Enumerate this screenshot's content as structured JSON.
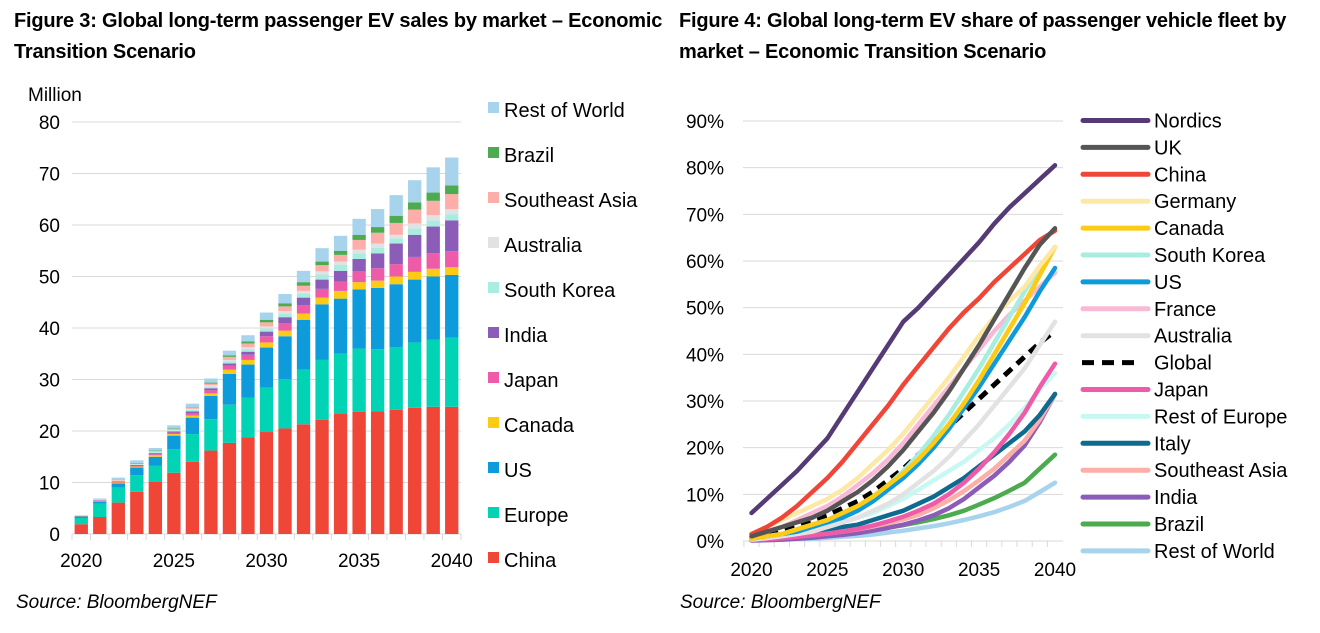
{
  "figures": {
    "fig3": {
      "title": "Figure 3: Global long-term passenger EV sales by market – Economic Transition Scenario",
      "source": "Source: BloombergNEF"
    },
    "fig4": {
      "title": "Figure 4: Global long-term EV share of passenger vehicle fleet by market – Economic Transition Scenario",
      "source": "Source: BloombergNEF"
    }
  },
  "chart_data": [
    {
      "type": "bar",
      "stacked": true,
      "title": "Figure 3: Global long-term passenger EV sales by market – Economic Transition Scenario",
      "ylabel": "Million",
      "xlabel": "",
      "ylim": [
        0,
        80
      ],
      "yticks": [
        0,
        10,
        20,
        30,
        40,
        50,
        60,
        70,
        80
      ],
      "xtick_labels": [
        "2020",
        "2025",
        "2030",
        "2035",
        "2040"
      ],
      "grid": true,
      "legend_position": "right",
      "categories": [
        "2020",
        "2021",
        "2022",
        "2023",
        "2024",
        "2025",
        "2026",
        "2027",
        "2028",
        "2029",
        "2030",
        "2031",
        "2032",
        "2033",
        "2034",
        "2035",
        "2036",
        "2037",
        "2038",
        "2039",
        "2040"
      ],
      "series": [
        {
          "name": "China",
          "color": "#ef4638",
          "values": [
            1.9,
            3.3,
            6.1,
            8.2,
            10.1,
            11.9,
            14.0,
            16.2,
            17.7,
            18.8,
            19.8,
            20.5,
            21.3,
            22.2,
            23.3,
            23.7,
            23.8,
            24.1,
            24.5,
            24.7,
            24.7
          ]
        },
        {
          "name": "Europe",
          "color": "#00d4b4",
          "values": [
            1.2,
            2.6,
            2.9,
            3.2,
            3.2,
            4.6,
            5.4,
            6.1,
            7.4,
            7.7,
            8.6,
            9.6,
            10.6,
            11.6,
            11.7,
            12.3,
            12.1,
            12.2,
            12.7,
            13.0,
            13.4
          ]
        },
        {
          "name": "US",
          "color": "#0e9bdb",
          "values": [
            0.3,
            0.4,
            0.8,
            1.5,
            1.7,
            2.6,
            3.2,
            4.5,
            6.0,
            6.4,
            7.8,
            8.3,
            9.7,
            10.8,
            10.7,
            11.5,
            11.9,
            12.2,
            12.2,
            12.3,
            12.2
          ]
        },
        {
          "name": "Canada",
          "color": "#fdcb13",
          "values": [
            0.05,
            0.1,
            0.2,
            0.2,
            0.3,
            0.3,
            0.4,
            0.5,
            0.8,
            0.9,
            1.0,
            1.1,
            1.2,
            1.3,
            1.5,
            1.4,
            1.4,
            1.5,
            1.5,
            1.5,
            1.5
          ]
        },
        {
          "name": "Japan",
          "color": "#ee5ba8",
          "values": [
            0.05,
            0.1,
            0.1,
            0.2,
            0.2,
            0.3,
            0.5,
            0.6,
            0.8,
            1.0,
            1.2,
            1.4,
            1.6,
            1.7,
            1.8,
            2.1,
            2.4,
            2.4,
            2.9,
            3.0,
            3.1
          ]
        },
        {
          "name": "India",
          "color": "#8b5cb8",
          "values": [
            0.0,
            0.05,
            0.1,
            0.1,
            0.2,
            0.2,
            0.3,
            0.4,
            0.4,
            0.6,
            0.9,
            1.2,
            1.5,
            1.8,
            2.1,
            2.4,
            2.9,
            4.0,
            4.3,
            5.2,
            6.0
          ]
        },
        {
          "name": "South Korea",
          "color": "#a8ede0",
          "values": [
            0.05,
            0.05,
            0.1,
            0.1,
            0.2,
            0.2,
            0.3,
            0.3,
            0.4,
            0.5,
            0.6,
            0.7,
            0.8,
            1.0,
            1.2,
            1.1,
            1.1,
            1.0,
            1.2,
            1.2,
            1.2
          ]
        },
        {
          "name": "Australia",
          "color": "#e2e2e2",
          "values": [
            0.0,
            0.05,
            0.1,
            0.1,
            0.1,
            0.1,
            0.2,
            0.3,
            0.3,
            0.4,
            0.4,
            0.5,
            0.5,
            0.6,
            0.6,
            0.7,
            0.8,
            0.7,
            1.0,
            1.0,
            1.0
          ]
        },
        {
          "name": "Southeast Asia",
          "color": "#fdaea8",
          "values": [
            0.0,
            0.05,
            0.1,
            0.1,
            0.1,
            0.2,
            0.2,
            0.3,
            0.6,
            0.7,
            0.8,
            0.9,
            1.0,
            1.2,
            1.3,
            1.9,
            2.1,
            2.3,
            2.7,
            2.8,
            2.9
          ]
        },
        {
          "name": "Brazil",
          "color": "#4caa4f",
          "values": [
            0.0,
            0.0,
            0.05,
            0.1,
            0.1,
            0.1,
            0.1,
            0.2,
            0.3,
            0.4,
            0.5,
            0.6,
            0.7,
            0.7,
            0.8,
            1.0,
            1.1,
            1.4,
            1.4,
            1.6,
            1.7
          ]
        },
        {
          "name": "Rest of World",
          "color": "#a7d4ec",
          "values": [
            0.1,
            0.2,
            0.4,
            0.5,
            0.5,
            0.6,
            0.7,
            0.8,
            0.9,
            1.2,
            1.4,
            1.8,
            2.2,
            2.6,
            2.9,
            3.1,
            3.5,
            4.0,
            4.3,
            4.9,
            5.4
          ]
        }
      ]
    },
    {
      "type": "line",
      "title": "Figure 4: Global long-term EV share of passenger vehicle fleet by market – Economic Transition Scenario",
      "ylabel": "",
      "xlabel": "",
      "ylim": [
        0,
        90
      ],
      "yticks": [
        0,
        10,
        20,
        30,
        40,
        50,
        60,
        70,
        80,
        90
      ],
      "ytick_format": "percent",
      "xlim": [
        2020,
        2040
      ],
      "xtick_labels": [
        "2020",
        "2025",
        "2030",
        "2035",
        "2040"
      ],
      "grid": true,
      "legend_position": "right",
      "x": [
        2020,
        2021,
        2022,
        2023,
        2024,
        2025,
        2026,
        2027,
        2028,
        2029,
        2030,
        2031,
        2032,
        2033,
        2034,
        2035,
        2036,
        2037,
        2038,
        2039,
        2040
      ],
      "series": [
        {
          "name": "Nordics",
          "color": "#553a76",
          "dashed": false,
          "values": [
            6,
            9,
            12,
            15,
            18.5,
            22,
            27,
            32,
            37,
            42,
            47,
            50,
            53.5,
            57,
            60.5,
            64,
            68,
            71.5,
            74.5,
            77.5,
            80.5
          ]
        },
        {
          "name": "UK",
          "color": "#555555",
          "dashed": false,
          "values": [
            1,
            2,
            3,
            4,
            5,
            6.5,
            8.5,
            10.5,
            13,
            16,
            19.5,
            23.5,
            27.5,
            32,
            37,
            42,
            47.5,
            53,
            58.5,
            63.5,
            67
          ]
        },
        {
          "name": "China",
          "color": "#ef4638",
          "dashed": false,
          "values": [
            1.5,
            3,
            5,
            7.5,
            10.5,
            13.5,
            17,
            21,
            25,
            29,
            33.5,
            37.5,
            41.5,
            45.5,
            49,
            52,
            55.5,
            58.5,
            61.5,
            64.5,
            66.5
          ]
        },
        {
          "name": "Germany",
          "color": "#fde8a6",
          "dashed": false,
          "values": [
            1.5,
            3,
            4.5,
            6,
            7.5,
            9,
            11,
            13.5,
            16.5,
            19.5,
            23,
            27,
            31,
            35,
            39.5,
            44,
            48,
            51.5,
            54.5,
            59,
            63
          ]
        },
        {
          "name": "Canada",
          "color": "#fdcb13",
          "dashed": false,
          "values": [
            0.5,
            1,
            1.5,
            2.5,
            3.5,
            4.5,
            6,
            7.5,
            9.5,
            12,
            14.5,
            17.5,
            21,
            25,
            29.5,
            34.5,
            40,
            45.5,
            51,
            57,
            63
          ]
        },
        {
          "name": "South Korea",
          "color": "#a8ede0",
          "dashed": false,
          "values": [
            0.5,
            1,
            1.5,
            2.5,
            3.5,
            4.5,
            6,
            7.5,
            9.5,
            12,
            15,
            18.5,
            22.5,
            27,
            32,
            37,
            42.5,
            48,
            53.5,
            58.5,
            63
          ]
        },
        {
          "name": "US",
          "color": "#0e9bdb",
          "dashed": false,
          "values": [
            0.5,
            1,
            1.5,
            2,
            3,
            4,
            5,
            6.5,
            8.5,
            11,
            13.5,
            16.5,
            20,
            24,
            28.5,
            33,
            38,
            43,
            48,
            53.5,
            58.5
          ]
        },
        {
          "name": "France",
          "color": "#f8b9d6",
          "dashed": false,
          "values": [
            1,
            2,
            3,
            4.5,
            6,
            7.5,
            9.5,
            12,
            14.5,
            17.5,
            21,
            25,
            29,
            33,
            37,
            41,
            45,
            48.5,
            51.5,
            54.5,
            57.5
          ]
        },
        {
          "name": "Australia",
          "color": "#e2e2e2",
          "dashed": false,
          "values": [
            0.3,
            0.6,
            1,
            1.5,
            2,
            3,
            4,
            5,
            6.5,
            8,
            10,
            12.5,
            15,
            18,
            21.5,
            25,
            29,
            33,
            37,
            42,
            47
          ]
        },
        {
          "name": "Global",
          "color": "#000000",
          "dashed": true,
          "values": [
            1,
            1.5,
            2.5,
            3.5,
            4.5,
            5.5,
            7,
            8.5,
            10.5,
            13,
            15.5,
            18.5,
            21.5,
            24.5,
            27.5,
            30.5,
            33.5,
            36.5,
            39.5,
            42.5,
            45
          ]
        },
        {
          "name": "Japan",
          "color": "#ee5ba8",
          "dashed": false,
          "values": [
            0.2,
            0.4,
            0.6,
            0.9,
            1.2,
            1.6,
            2,
            2.6,
            3.3,
            4.2,
            5.2,
            6.5,
            8,
            10,
            12.5,
            15.5,
            19,
            23,
            27.5,
            33,
            38
          ]
        },
        {
          "name": "Rest of Europe",
          "color": "#c8f8f2",
          "dashed": false,
          "values": [
            0.5,
            1,
            1.5,
            2,
            2.5,
            3,
            4,
            5,
            6,
            7.5,
            9,
            11,
            13,
            15,
            17,
            19.5,
            22,
            25,
            28.5,
            32.5,
            36
          ]
        },
        {
          "name": "Italy",
          "color": "#0e6a8e",
          "dashed": false,
          "values": [
            0.5,
            0.8,
            1.2,
            1.5,
            2,
            2.5,
            3,
            3.5,
            4.5,
            5.5,
            6.5,
            8,
            9.5,
            11.5,
            13.5,
            16,
            18.5,
            21,
            23.5,
            27,
            31.5
          ]
        },
        {
          "name": "Southeast Asia",
          "color": "#fdaea8",
          "dashed": false,
          "values": [
            0.3,
            0.5,
            0.7,
            1,
            1.3,
            1.6,
            2,
            2.5,
            3.1,
            3.8,
            4.6,
            5.6,
            7,
            8.7,
            10.7,
            13,
            15.5,
            18.5,
            21.5,
            26,
            31.5
          ]
        },
        {
          "name": "India",
          "color": "#8b5cb8",
          "dashed": false,
          "values": [
            0.1,
            0.2,
            0.3,
            0.5,
            0.7,
            1,
            1.3,
            1.7,
            2.2,
            2.8,
            3.5,
            4.4,
            5.5,
            7,
            9,
            11.5,
            14,
            17,
            20.5,
            25.5,
            31.5
          ]
        },
        {
          "name": "Brazil",
          "color": "#4caa4f",
          "dashed": false,
          "values": [
            0.2,
            0.4,
            0.6,
            0.8,
            1,
            1.3,
            1.6,
            2,
            2.4,
            2.9,
            3.4,
            4,
            4.7,
            5.5,
            6.5,
            7.8,
            9.2,
            10.8,
            12.5,
            15.5,
            18.5
          ]
        },
        {
          "name": "Rest of World",
          "color": "#a7d4ec",
          "dashed": false,
          "values": [
            0.1,
            0.2,
            0.3,
            0.4,
            0.5,
            0.7,
            0.9,
            1.1,
            1.4,
            1.8,
            2.2,
            2.7,
            3.2,
            3.8,
            4.5,
            5.3,
            6.2,
            7.3,
            8.6,
            10.5,
            12.5
          ]
        }
      ]
    }
  ]
}
